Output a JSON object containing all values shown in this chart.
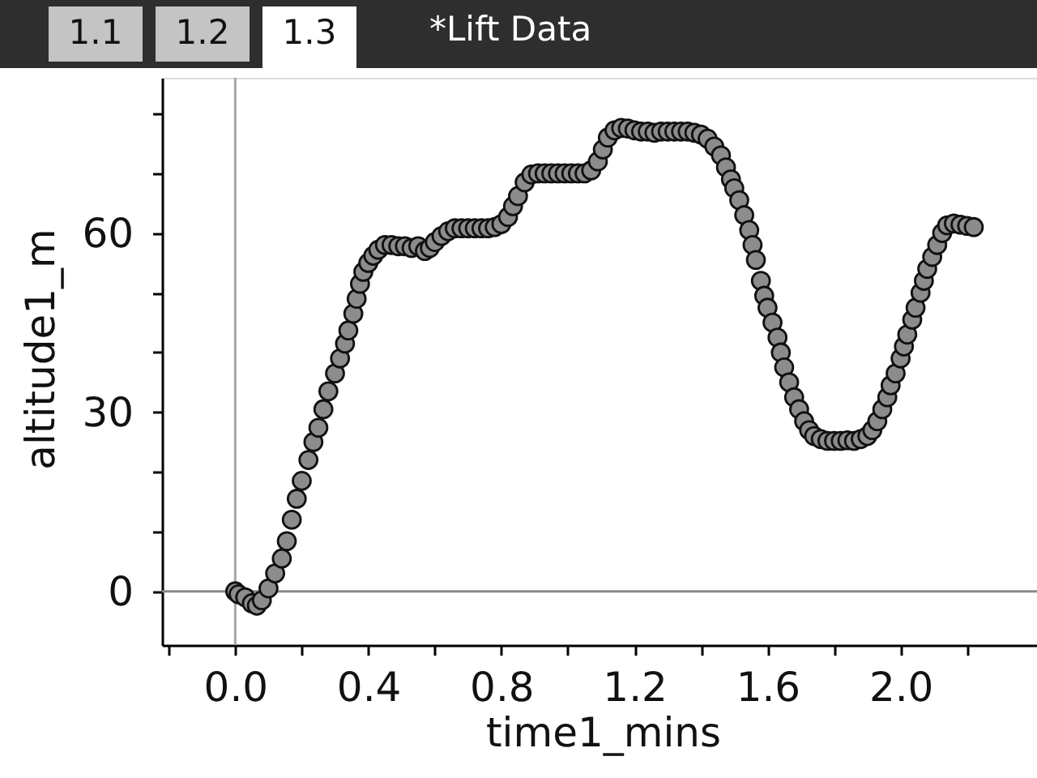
{
  "chart_data": {
    "type": "scatter",
    "title": "*Lift Data",
    "annotations": [
      "1.1",
      "1.2",
      "1.3"
    ],
    "xlabel": "time1_mins",
    "ylabel": "altitude1_m",
    "x": [
      0,
      0.01,
      0.03,
      0.05,
      0.065,
      0.08,
      0.1,
      0.12,
      0.14,
      0.155,
      0.17,
      0.185,
      0.2,
      0.22,
      0.235,
      0.25,
      0.265,
      0.28,
      0.3,
      0.315,
      0.33,
      0.34,
      0.355,
      0.365,
      0.375,
      0.385,
      0.4,
      0.415,
      0.43,
      0.45,
      0.47,
      0.49,
      0.51,
      0.53,
      0.55,
      0.57,
      0.585,
      0.6,
      0.62,
      0.64,
      0.66,
      0.68,
      0.7,
      0.72,
      0.74,
      0.76,
      0.78,
      0.8,
      0.82,
      0.835,
      0.85,
      0.87,
      0.89,
      0.91,
      0.93,
      0.95,
      0.97,
      0.99,
      1.01,
      1.03,
      1.05,
      1.07,
      1.09,
      1.105,
      1.12,
      1.14,
      1.16,
      1.18,
      1.2,
      1.22,
      1.24,
      1.26,
      1.28,
      1.3,
      1.32,
      1.34,
      1.36,
      1.38,
      1.4,
      1.42,
      1.44,
      1.46,
      1.475,
      1.49,
      1.5,
      1.515,
      1.53,
      1.545,
      1.555,
      1.565,
      1.58,
      1.59,
      1.6,
      1.615,
      1.63,
      1.64,
      1.65,
      1.665,
      1.68,
      1.695,
      1.71,
      1.725,
      1.74,
      1.76,
      1.78,
      1.8,
      1.82,
      1.84,
      1.86,
      1.88,
      1.9,
      1.915,
      1.93,
      1.945,
      1.96,
      1.97,
      1.985,
      2,
      2.01,
      2.02,
      2.035,
      2.045,
      2.06,
      2.07,
      2.08,
      2.095,
      2.11,
      2.125,
      2.14,
      2.16,
      2.18,
      2.2,
      2.22
    ],
    "series": [
      {
        "color": "#8c8c8c",
        "values": [
          0,
          -0.5,
          -1,
          -2,
          -2.4,
          -1.5,
          0.5,
          3,
          5.5,
          8.4,
          12,
          15.5,
          18.5,
          22,
          25,
          27.4,
          30.5,
          33.5,
          36.5,
          39,
          41.5,
          43.7,
          46.5,
          49,
          51.5,
          53.5,
          55,
          56.2,
          57.2,
          58,
          58,
          57.8,
          57.8,
          57.5,
          57.8,
          57,
          57.5,
          58.5,
          59.5,
          60.3,
          60.8,
          60.8,
          60.8,
          60.8,
          60.8,
          60.8,
          61,
          61.5,
          62.7,
          64.5,
          66.2,
          68.5,
          69.8,
          70,
          70,
          70,
          70,
          70,
          70,
          70,
          70,
          70.5,
          72,
          74,
          76,
          77.2,
          77.6,
          77.5,
          77.2,
          77,
          77,
          76.8,
          77,
          77,
          77,
          77,
          77,
          76.8,
          76.5,
          75.8,
          74.5,
          73,
          71,
          69,
          67.5,
          65.5,
          63,
          60.5,
          58,
          55.5,
          52,
          49.5,
          47.5,
          45,
          42.5,
          40,
          37.5,
          35,
          32.5,
          30.5,
          28.5,
          27,
          26,
          25.5,
          25.2,
          25.2,
          25.2,
          25.3,
          25.2,
          25.5,
          26,
          27,
          28.5,
          30.5,
          32.5,
          34.5,
          36.5,
          39,
          41,
          43,
          45.5,
          47.5,
          50,
          52,
          54,
          56,
          58,
          60,
          61.3,
          61.6,
          61.4,
          61.2,
          61
        ]
      }
    ],
    "xlim": [
      -0.22,
      2.41
    ],
    "ylim": [
      -9,
      86
    ],
    "xticks": [
      {
        "value": -0.2,
        "label": null
      },
      {
        "value": 0,
        "label": "0.0"
      },
      {
        "value": 0.2,
        "label": null
      },
      0.4,
      {
        "value": 0.6,
        "label": null
      },
      0.8,
      {
        "value": 1,
        "label": null
      },
      1.2,
      {
        "value": 1.4,
        "label": null
      },
      1.6,
      {
        "value": 1.8,
        "label": null
      },
      {
        "value": 2,
        "label": "2.0"
      },
      {
        "value": 2.2,
        "label": null
      }
    ],
    "yticks": [
      0,
      {
        "value": 10,
        "label": null
      },
      {
        "value": 20,
        "label": null
      },
      30,
      {
        "value": 40,
        "label": null
      },
      {
        "value": 50,
        "label": null
      },
      60,
      {
        "value": 70,
        "label": null
      },
      {
        "value": 80,
        "label": null
      }
    ],
    "ref_lines": [
      {
        "axis": "x",
        "value": 0,
        "color": "#a6a6a6"
      },
      {
        "axis": "y",
        "value": 0,
        "color": "#8a8a8a"
      }
    ],
    "grid": false,
    "marker": "circle"
  }
}
